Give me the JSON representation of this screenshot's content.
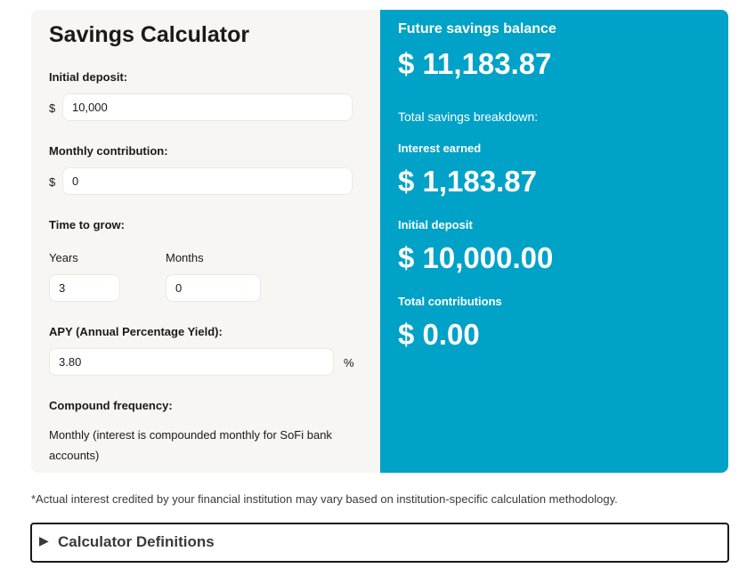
{
  "calculator": {
    "title": "Savings Calculator",
    "initial_deposit": {
      "label": "Initial deposit:",
      "currency": "$",
      "value": "10,000"
    },
    "monthly_contribution": {
      "label": "Monthly contribution:",
      "currency": "$",
      "value": "0"
    },
    "time_to_grow": {
      "label": "Time to grow:",
      "years_label": "Years",
      "years_value": "3",
      "months_label": "Months",
      "months_value": "0"
    },
    "apy": {
      "label": "APY (Annual Percentage Yield):",
      "value": "3.80",
      "unit": "%"
    },
    "compound_frequency": {
      "label": "Compound frequency:",
      "value": "Monthly (interest is compounded monthly for SoFi bank accounts)"
    }
  },
  "results": {
    "future_balance_label": "Future savings balance",
    "future_balance_value": "$ 11,183.87",
    "breakdown_label": "Total savings breakdown:",
    "interest_label": "Interest earned",
    "interest_value": "$ 1,183.87",
    "initial_deposit_label": "Initial deposit",
    "initial_deposit_value": "$ 10,000.00",
    "contributions_label": "Total contributions",
    "contributions_value": "$ 0.00"
  },
  "disclaimer": "*Actual interest credited by your financial institution may vary based on institution-specific calculation methodology.",
  "definitions": {
    "arrow": "▶",
    "label": "Calculator Definitions"
  },
  "colors": {
    "results_panel": "#00a2c7",
    "input_panel": "#f8f6f3"
  }
}
